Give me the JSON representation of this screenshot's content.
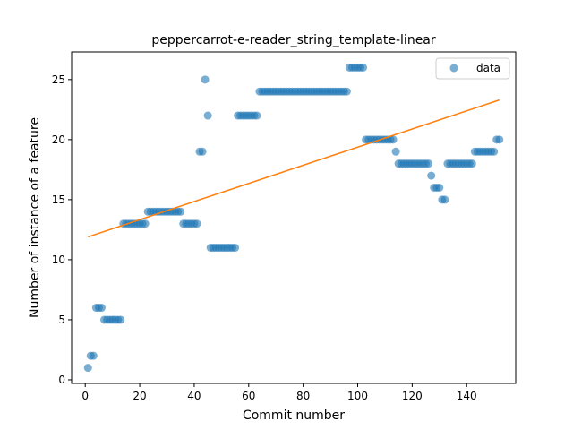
{
  "chart_data": {
    "type": "scatter",
    "title": "peppercarrot-e-reader_string_template-linear",
    "xlabel": "Commit number",
    "ylabel": "Number of instance of a feature",
    "xlim": [
      -5,
      158
    ],
    "ylim": [
      -0.3,
      27.3
    ],
    "xticks": [
      0,
      20,
      40,
      60,
      80,
      100,
      120,
      140
    ],
    "yticks": [
      0,
      5,
      10,
      15,
      20,
      25
    ],
    "grid": false,
    "legend_position": "top-right",
    "series": [
      {
        "name": "data",
        "kind": "scatter",
        "color": "#1f77b4",
        "points": [
          [
            1,
            1
          ],
          [
            2,
            2
          ],
          [
            3,
            2
          ],
          [
            4,
            6
          ],
          [
            5,
            6
          ],
          [
            6,
            6
          ],
          [
            7,
            5
          ],
          [
            8,
            5
          ],
          [
            9,
            5
          ],
          [
            10,
            5
          ],
          [
            11,
            5
          ],
          [
            12,
            5
          ],
          [
            13,
            5
          ],
          [
            14,
            13
          ],
          [
            15,
            13
          ],
          [
            16,
            13
          ],
          [
            17,
            13
          ],
          [
            18,
            13
          ],
          [
            19,
            13
          ],
          [
            20,
            13
          ],
          [
            21,
            13
          ],
          [
            22,
            13
          ],
          [
            23,
            14
          ],
          [
            24,
            14
          ],
          [
            25,
            14
          ],
          [
            26,
            14
          ],
          [
            27,
            14
          ],
          [
            28,
            14
          ],
          [
            29,
            14
          ],
          [
            30,
            14
          ],
          [
            31,
            14
          ],
          [
            32,
            14
          ],
          [
            33,
            14
          ],
          [
            34,
            14
          ],
          [
            35,
            14
          ],
          [
            36,
            13
          ],
          [
            37,
            13
          ],
          [
            38,
            13
          ],
          [
            39,
            13
          ],
          [
            40,
            13
          ],
          [
            41,
            13
          ],
          [
            42,
            19
          ],
          [
            43,
            19
          ],
          [
            44,
            25
          ],
          [
            45,
            22
          ],
          [
            46,
            11
          ],
          [
            47,
            11
          ],
          [
            48,
            11
          ],
          [
            49,
            11
          ],
          [
            50,
            11
          ],
          [
            51,
            11
          ],
          [
            52,
            11
          ],
          [
            53,
            11
          ],
          [
            54,
            11
          ],
          [
            55,
            11
          ],
          [
            56,
            22
          ],
          [
            57,
            22
          ],
          [
            58,
            22
          ],
          [
            59,
            22
          ],
          [
            60,
            22
          ],
          [
            61,
            22
          ],
          [
            62,
            22
          ],
          [
            63,
            22
          ],
          [
            64,
            24
          ],
          [
            65,
            24
          ],
          [
            66,
            24
          ],
          [
            67,
            24
          ],
          [
            68,
            24
          ],
          [
            69,
            24
          ],
          [
            70,
            24
          ],
          [
            71,
            24
          ],
          [
            72,
            24
          ],
          [
            73,
            24
          ],
          [
            74,
            24
          ],
          [
            75,
            24
          ],
          [
            76,
            24
          ],
          [
            77,
            24
          ],
          [
            78,
            24
          ],
          [
            79,
            24
          ],
          [
            80,
            24
          ],
          [
            81,
            24
          ],
          [
            82,
            24
          ],
          [
            83,
            24
          ],
          [
            84,
            24
          ],
          [
            85,
            24
          ],
          [
            86,
            24
          ],
          [
            87,
            24
          ],
          [
            88,
            24
          ],
          [
            89,
            24
          ],
          [
            90,
            24
          ],
          [
            91,
            24
          ],
          [
            92,
            24
          ],
          [
            93,
            24
          ],
          [
            94,
            24
          ],
          [
            95,
            24
          ],
          [
            96,
            24
          ],
          [
            97,
            26
          ],
          [
            98,
            26
          ],
          [
            99,
            26
          ],
          [
            100,
            26
          ],
          [
            101,
            26
          ],
          [
            102,
            26
          ],
          [
            103,
            20
          ],
          [
            104,
            20
          ],
          [
            105,
            20
          ],
          [
            106,
            20
          ],
          [
            107,
            20
          ],
          [
            108,
            20
          ],
          [
            109,
            20
          ],
          [
            110,
            20
          ],
          [
            111,
            20
          ],
          [
            112,
            20
          ],
          [
            113,
            20
          ],
          [
            114,
            19
          ],
          [
            115,
            18
          ],
          [
            116,
            18
          ],
          [
            117,
            18
          ],
          [
            118,
            18
          ],
          [
            119,
            18
          ],
          [
            120,
            18
          ],
          [
            121,
            18
          ],
          [
            122,
            18
          ],
          [
            123,
            18
          ],
          [
            124,
            18
          ],
          [
            125,
            18
          ],
          [
            126,
            18
          ],
          [
            127,
            17
          ],
          [
            128,
            16
          ],
          [
            129,
            16
          ],
          [
            130,
            16
          ],
          [
            131,
            15
          ],
          [
            132,
            15
          ],
          [
            133,
            18
          ],
          [
            134,
            18
          ],
          [
            135,
            18
          ],
          [
            136,
            18
          ],
          [
            137,
            18
          ],
          [
            138,
            18
          ],
          [
            139,
            18
          ],
          [
            140,
            18
          ],
          [
            141,
            18
          ],
          [
            142,
            18
          ],
          [
            143,
            19
          ],
          [
            144,
            19
          ],
          [
            145,
            19
          ],
          [
            146,
            19
          ],
          [
            147,
            19
          ],
          [
            148,
            19
          ],
          [
            149,
            19
          ],
          [
            150,
            19
          ],
          [
            151,
            20
          ],
          [
            152,
            20
          ]
        ]
      },
      {
        "kind": "line",
        "color": "#ff7f0e",
        "points": [
          [
            1,
            11.9
          ],
          [
            152,
            23.3
          ]
        ]
      }
    ]
  }
}
